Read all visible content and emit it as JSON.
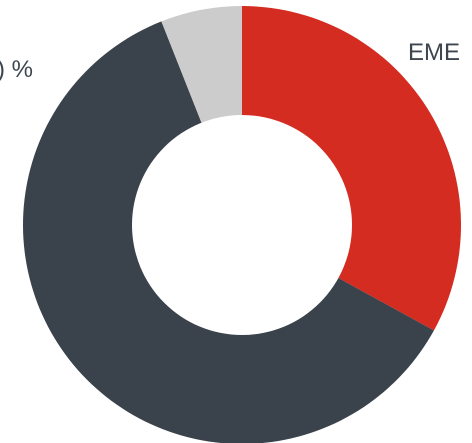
{
  "chart_data": {
    "type": "pie",
    "variant": "donut",
    "slices": [
      {
        "label": "EME",
        "value": 33,
        "color": "#d42c20"
      },
      {
        "label": "",
        "value": 61,
        "color": "#3a424b"
      },
      {
        "label": "",
        "value": 6,
        "color": "#cccccc"
      }
    ],
    "partial_labels": {
      "left": ") %",
      "right": "EME"
    },
    "legend": "none",
    "grid": false
  }
}
